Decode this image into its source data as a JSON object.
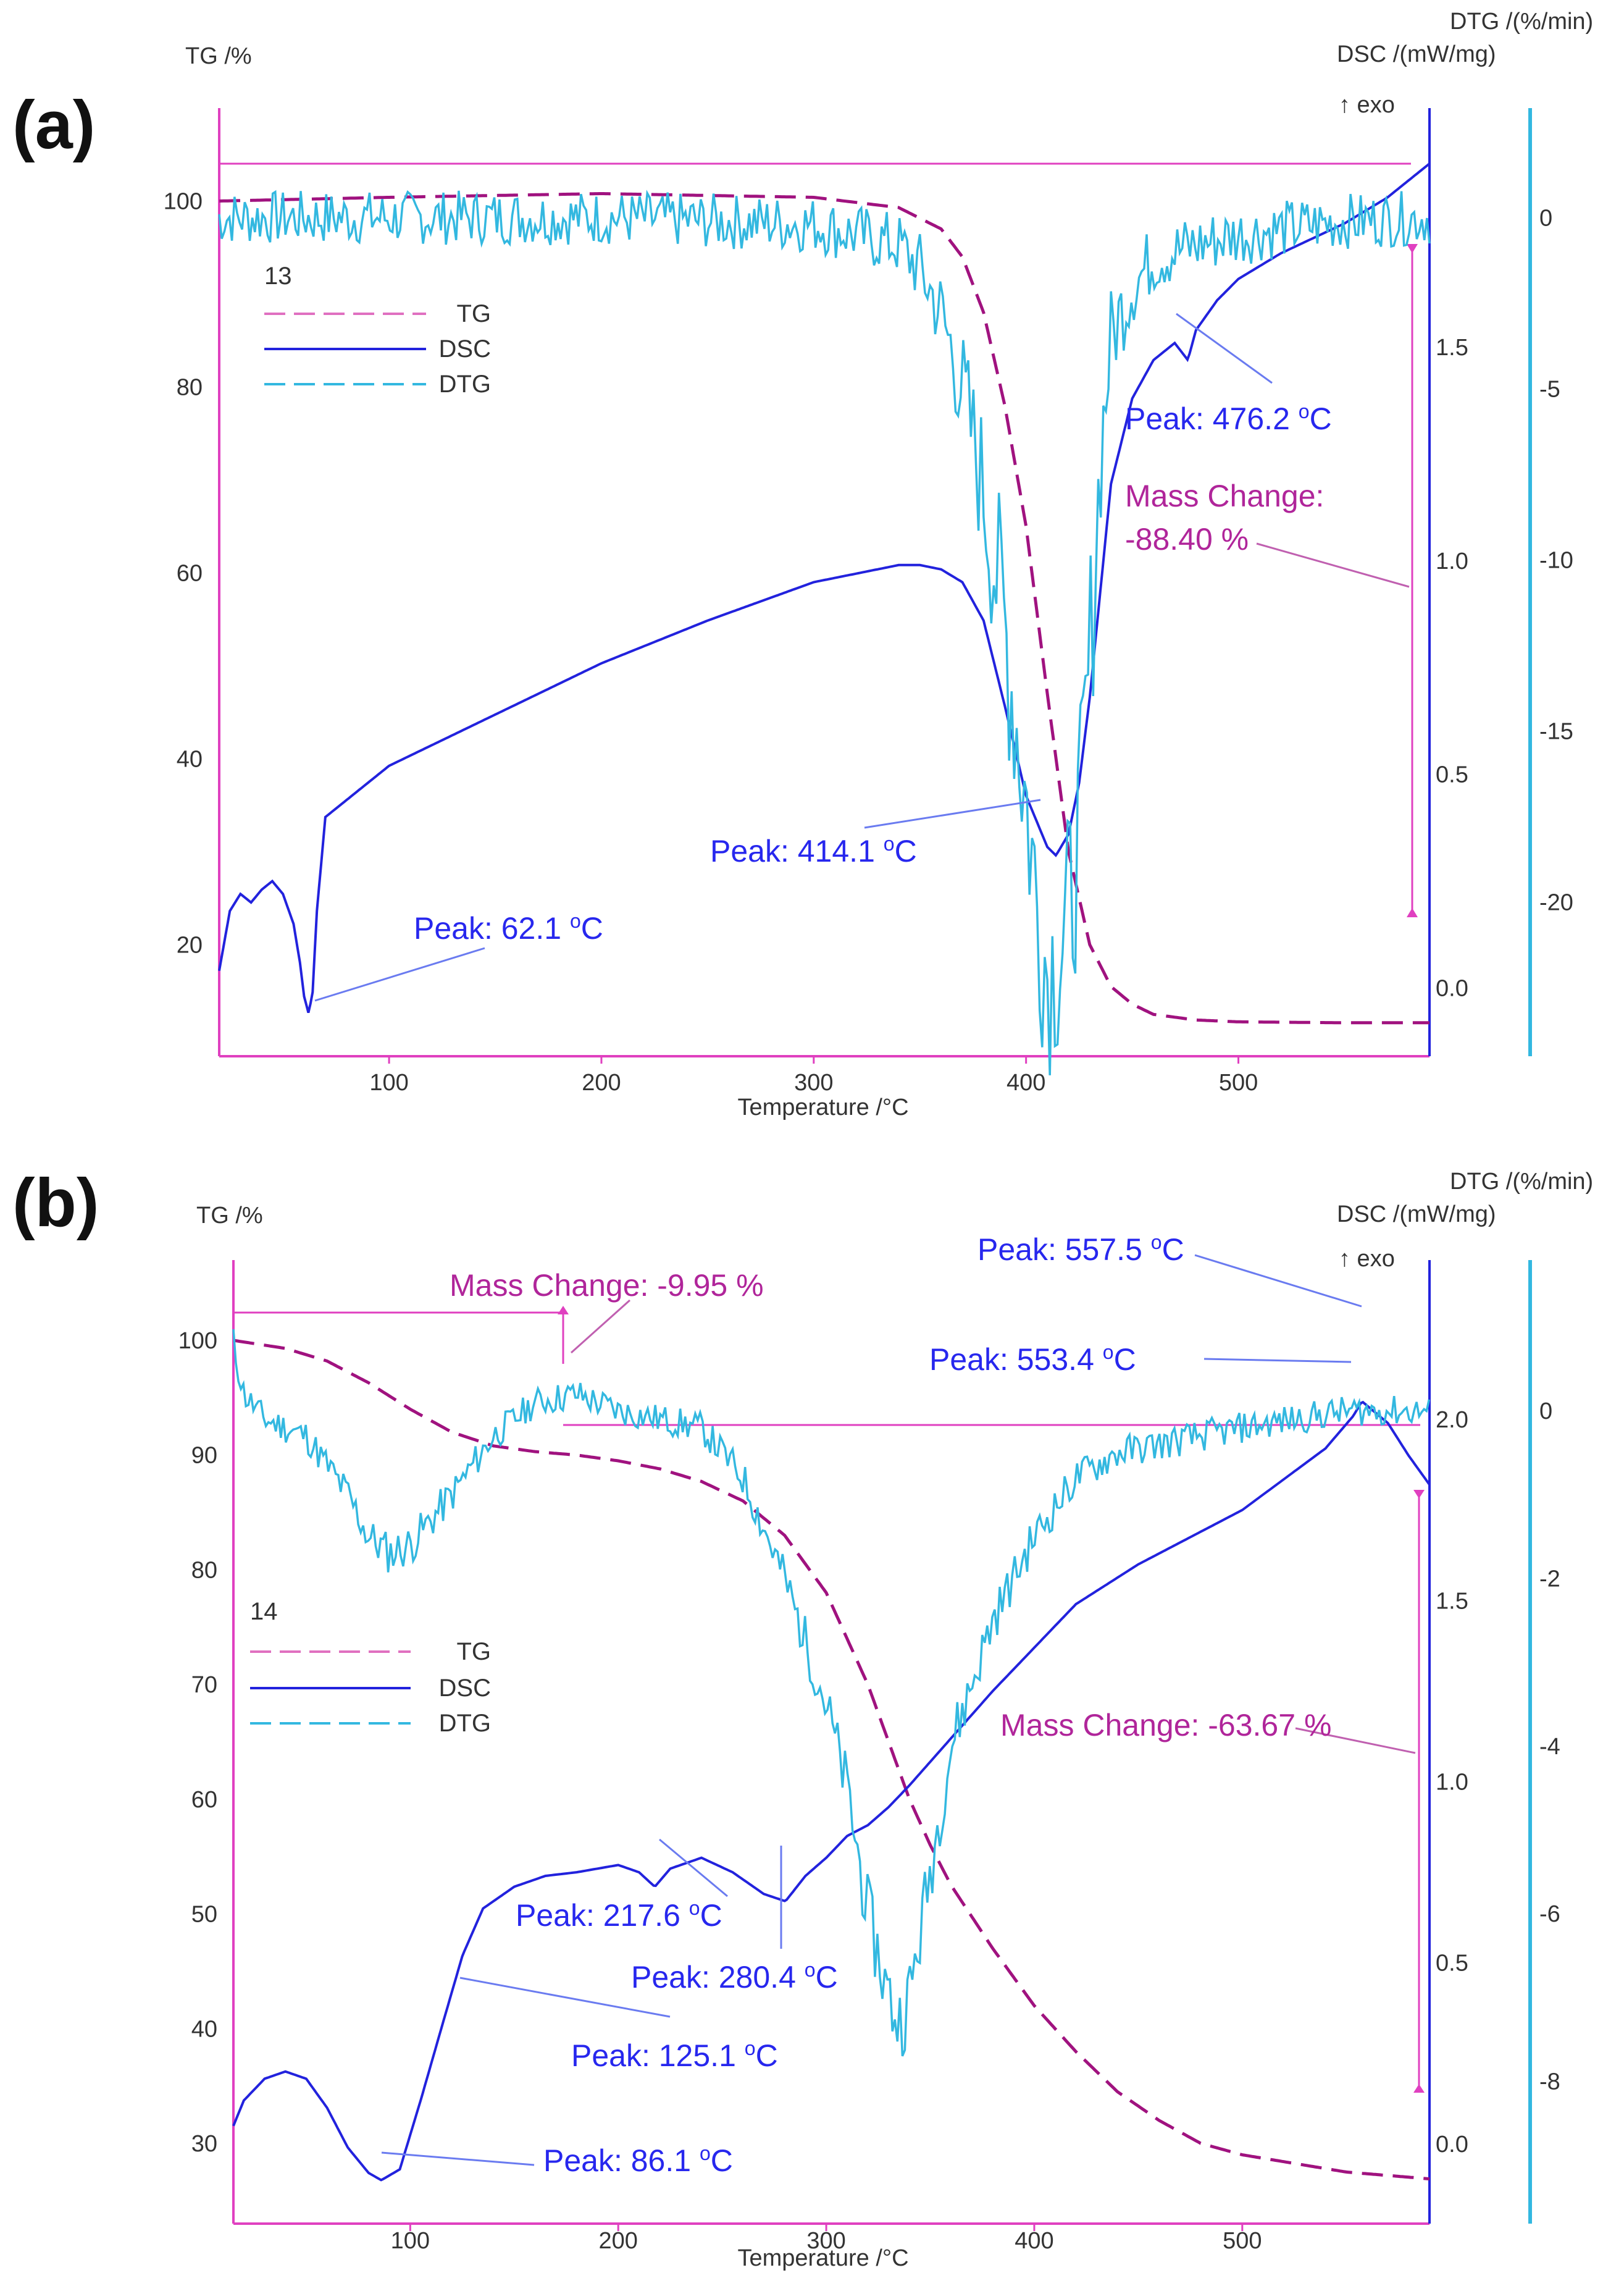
{
  "colors": {
    "tg": "#a0127f",
    "tg_axis": "#e040c0",
    "dsc": "#2222dd",
    "dtg": "#33b8e0",
    "axis_text": "#333333",
    "peak_label": "#2727ee",
    "mass_label": "#b0259a"
  },
  "chart_data": [
    {
      "type": "line",
      "panel_label": "(a)",
      "sample_id": "13",
      "xlabel": "Temperature /°C",
      "ylabel_left": "TG /%",
      "ylabel_right1": "DSC /(mW/mg)",
      "ylabel_right2": "DTG /(%/min)",
      "exo_label": "↑ exo",
      "legend": [
        "TG",
        "DSC",
        "DTG"
      ],
      "xlim": [
        20,
        590
      ],
      "xticks": [
        100,
        200,
        300,
        400,
        500
      ],
      "tg_lim": [
        8,
        110
      ],
      "tg_ticks": [
        20,
        40,
        60,
        80,
        100
      ],
      "dsc_lim": [
        -0.16,
        2.06
      ],
      "dsc_ticks": [
        0.0,
        0.5,
        1.0,
        1.5
      ],
      "dsc_tick_labels": [
        "0.0",
        "0.5",
        "1.0",
        "1.5"
      ],
      "dtg_lim": [
        -24.5,
        3.2
      ],
      "dtg_ticks": [
        -20,
        -15,
        -10,
        -5,
        0
      ],
      "series": [
        {
          "name": "TG",
          "x": [
            20,
            100,
            200,
            300,
            340,
            360,
            370,
            380,
            390,
            400,
            410,
            420,
            430,
            440,
            450,
            460,
            480,
            500,
            550,
            590
          ],
          "values": [
            100,
            100.4,
            100.8,
            100.4,
            99.3,
            97.0,
            94.0,
            88.0,
            78.0,
            65.0,
            47.0,
            30.0,
            20.0,
            15.5,
            13.6,
            12.5,
            11.9,
            11.7,
            11.6,
            11.6
          ]
        },
        {
          "name": "DSC",
          "x": [
            20,
            25,
            30,
            35,
            40,
            45,
            50,
            55,
            58,
            60,
            62.1,
            64,
            66,
            70,
            80,
            100,
            150,
            200,
            250,
            300,
            340,
            350,
            360,
            370,
            380,
            390,
            400,
            410,
            414.1,
            420,
            425,
            430,
            440,
            450,
            460,
            470,
            476.2,
            480,
            490,
            500,
            520,
            550,
            570,
            590
          ],
          "values": [
            0.04,
            0.18,
            0.22,
            0.2,
            0.23,
            0.25,
            0.22,
            0.15,
            0.06,
            -0.02,
            -0.06,
            -0.01,
            0.18,
            0.4,
            0.44,
            0.52,
            0.64,
            0.76,
            0.86,
            0.95,
            0.99,
            0.99,
            0.98,
            0.95,
            0.86,
            0.66,
            0.45,
            0.33,
            0.31,
            0.36,
            0.48,
            0.68,
            1.18,
            1.38,
            1.47,
            1.51,
            1.47,
            1.54,
            1.61,
            1.66,
            1.72,
            1.79,
            1.85,
            1.93
          ]
        },
        {
          "name": "DTG",
          "noise": 0.8,
          "seed": 7,
          "x": [
            20,
            100,
            200,
            300,
            340,
            350,
            360,
            370,
            380,
            390,
            400,
            405,
            410,
            415,
            420,
            425,
            430,
            435,
            440,
            450,
            460,
            480,
            500,
            550,
            590
          ],
          "values": [
            0,
            0,
            0,
            -0.2,
            -0.8,
            -1.5,
            -2.8,
            -5,
            -8,
            -12,
            -17,
            -20,
            -22,
            -21.5,
            -20.5,
            -18,
            -13,
            -7,
            -3.5,
            -2,
            -1.2,
            -0.8,
            -0.5,
            -0.1,
            0
          ]
        }
      ],
      "annotations": [
        {
          "text": "Peak: 62.1 °C",
          "value": "62.1",
          "color": "dsc"
        },
        {
          "text": "Peak: 414.1 °C",
          "value": "414.1",
          "color": "dsc"
        },
        {
          "text": "Peak: 476.2 °C",
          "value": "476.2",
          "color": "dsc"
        },
        {
          "text": "Mass Change:",
          "value": "-88.40 %",
          "color": "mass"
        }
      ]
    },
    {
      "type": "line",
      "panel_label": "(b)",
      "sample_id": "14",
      "xlabel": "Temperature /°C",
      "ylabel_left": "TG /%",
      "ylabel_right1": "DSC /(mW/mg)",
      "ylabel_right2": "DTG /(%/min)",
      "exo_label": "↑ exo",
      "legend": [
        "TG",
        "DSC",
        "DTG"
      ],
      "xlim": [
        15,
        590
      ],
      "xticks": [
        100,
        200,
        300,
        400,
        500
      ],
      "tg_lim": [
        23,
        107
      ],
      "tg_ticks": [
        30,
        40,
        50,
        60,
        70,
        80,
        90,
        100
      ],
      "dsc_lim": [
        -0.22,
        2.44
      ],
      "dsc_ticks": [
        0.0,
        0.5,
        1.0,
        1.5,
        2.0
      ],
      "dsc_tick_labels": [
        "0.0",
        "0.5",
        "1.0",
        "1.5",
        "2.0"
      ],
      "dtg_lim": [
        -9.7,
        1.8
      ],
      "dtg_ticks": [
        -8,
        -6,
        -4,
        -2,
        0
      ],
      "series": [
        {
          "name": "TG",
          "x": [
            15,
            40,
            60,
            80,
            100,
            120,
            140,
            160,
            180,
            200,
            220,
            240,
            260,
            280,
            300,
            320,
            330,
            340,
            350,
            360,
            380,
            400,
            420,
            440,
            460,
            480,
            500,
            550,
            590
          ],
          "values": [
            100,
            99.3,
            98.2,
            96.3,
            94.0,
            92.0,
            90.8,
            90.3,
            90.0,
            89.5,
            88.8,
            87.7,
            86.0,
            83.0,
            78.0,
            70.0,
            65.0,
            60.0,
            56.0,
            52.5,
            47.0,
            42.0,
            38.0,
            34.5,
            32.0,
            30.0,
            29.0,
            27.5,
            26.9
          ]
        },
        {
          "name": "DSC",
          "x": [
            15,
            20,
            30,
            40,
            50,
            60,
            70,
            80,
            86.1,
            95,
            105,
            115,
            125.1,
            135,
            150,
            165,
            180,
            200,
            210,
            217.6,
            225,
            240,
            255,
            270,
            280.4,
            290,
            300,
            310,
            320,
            330,
            340,
            360,
            380,
            400,
            420,
            450,
            500,
            540,
            553.4,
            557.5,
            570,
            580,
            590
          ],
          "values": [
            0.05,
            0.12,
            0.18,
            0.2,
            0.18,
            0.1,
            -0.01,
            -0.08,
            -0.1,
            -0.07,
            0.12,
            0.32,
            0.52,
            0.65,
            0.71,
            0.74,
            0.75,
            0.77,
            0.75,
            0.71,
            0.76,
            0.79,
            0.75,
            0.69,
            0.67,
            0.74,
            0.79,
            0.85,
            0.88,
            0.93,
            0.99,
            1.12,
            1.25,
            1.37,
            1.49,
            1.6,
            1.75,
            1.92,
            2.01,
            2.05,
            1.99,
            1.9,
            1.82
          ]
        },
        {
          "name": "DTG",
          "noise": 0.18,
          "seed": 11,
          "x": [
            15,
            20,
            30,
            50,
            70,
            80,
            90,
            100,
            120,
            140,
            160,
            180,
            200,
            220,
            240,
            260,
            280,
            300,
            310,
            320,
            330,
            335,
            340,
            350,
            360,
            380,
            400,
            420,
            440,
            460,
            500,
            550,
            590
          ],
          "values": [
            0.8,
            0.2,
            -0.1,
            -0.3,
            -1.0,
            -1.5,
            -1.7,
            -1.6,
            -1.0,
            -0.3,
            0.1,
            0.2,
            0,
            -0.1,
            -0.2,
            -0.8,
            -2.0,
            -3.5,
            -4.5,
            -6.0,
            -7.0,
            -7.3,
            -7.0,
            -5.5,
            -4.0,
            -2.5,
            -1.5,
            -0.8,
            -0.5,
            -0.4,
            -0.2,
            0,
            0
          ]
        }
      ],
      "annotations": [
        {
          "text": "Peak: 86.1 °C",
          "value": "86.1",
          "color": "dsc"
        },
        {
          "text": "Peak: 125.1 °C",
          "value": "125.1",
          "color": "dsc"
        },
        {
          "text": "Peak: 217.6 °C",
          "value": "217.6",
          "color": "dsc"
        },
        {
          "text": "Peak: 280.4 °C",
          "value": "280.4",
          "color": "dsc"
        },
        {
          "text": "Peak: 553.4 °C",
          "value": "553.4",
          "color": "dsc"
        },
        {
          "text": "Peak: 557.5 °C",
          "value": "557.5",
          "color": "dsc"
        },
        {
          "text": "Mass Change: -9.95 %",
          "value": "-9.95 %",
          "color": "mass"
        },
        {
          "text": "Mass Change: -63.67 %",
          "value": "-63.67 %",
          "color": "mass"
        }
      ]
    }
  ]
}
